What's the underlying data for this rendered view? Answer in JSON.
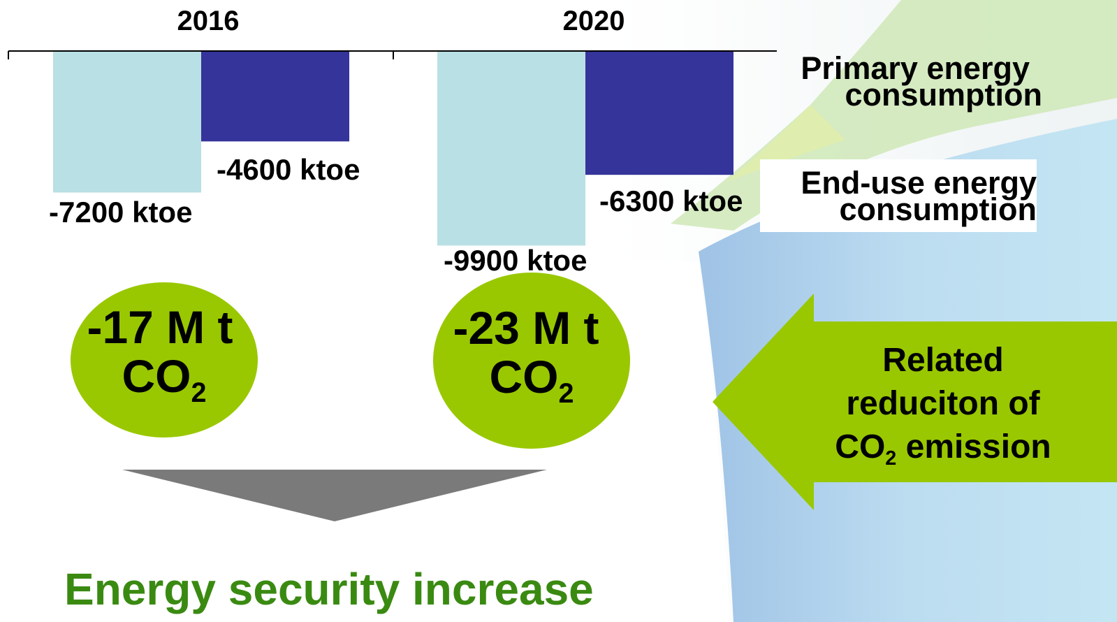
{
  "chart_data": {
    "type": "bar",
    "categories": [
      "2016",
      "2020"
    ],
    "series": [
      {
        "name": "Primary energy consumption",
        "values": [
          -7200,
          -9900
        ],
        "color": "#b9e0e4"
      },
      {
        "name": "End-use energy consumption",
        "values": [
          -4600,
          -6300
        ],
        "color": "#35349a"
      }
    ],
    "value_labels": [
      [
        "-7200 ktoe",
        "-9900 ktoe"
      ],
      [
        "-4600 ktoe",
        "-6300 ktoe"
      ]
    ],
    "legend": {
      "primary": [
        "Primary energy",
        "consumption"
      ],
      "enduse": [
        "End-use energy",
        "consumption"
      ],
      "placement": "right"
    },
    "xlabel": "",
    "ylabel": "",
    "ylim": [
      -10000,
      0
    ],
    "grid": false
  },
  "co2_reductions": [
    {
      "value": "-17 M t",
      "unit_main": "CO",
      "unit_sub": "2"
    },
    {
      "value": "-23 M t",
      "unit_main": "CO",
      "unit_sub": "2"
    }
  ],
  "arrow_callout": {
    "line1": "Related",
    "line2": "reduciton of",
    "line3_main": "CO",
    "line3_sub": "2",
    "line3_rest": " emission"
  },
  "conclusion": "Energy security increase",
  "colors": {
    "accent_green": "#99c800",
    "text_green": "#3a8a12",
    "arrow_grey": "#7a7a7a",
    "bg_blue": "#bfe1f0"
  }
}
